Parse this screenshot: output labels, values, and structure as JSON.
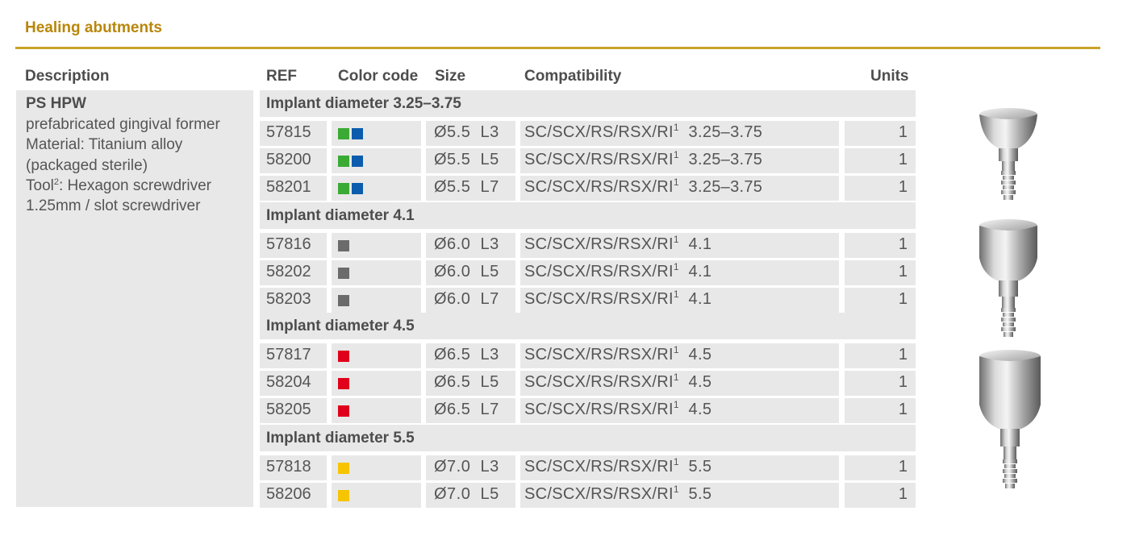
{
  "section_title": "Healing abutments",
  "headers": {
    "description": "Description",
    "ref": "REF",
    "color_code": "Color code",
    "size": "Size",
    "compatibility": "Compatibility",
    "units": "Units"
  },
  "description": {
    "title": "PS HPW",
    "line1": "prefabricated gingival former",
    "line2": "Material: Titanium alloy",
    "line3": "(packaged sterile)",
    "line4_pre": "Tool",
    "line4_sup": "2",
    "line4_post": ": Hexagon screwdriver",
    "line5": "1.25mm / slot screwdriver"
  },
  "groups": [
    {
      "label": "Implant diameter 3.25–3.75",
      "rows": [
        {
          "ref": "57815",
          "colors": [
            "#3aaa35",
            "#0b5cad"
          ],
          "size": "Ø5.5  L3",
          "compat": "SC/SCX/RS/RSX/RI",
          "compat_sup": "1",
          "compat_dia": "3.25–3.75",
          "units": "1"
        },
        {
          "ref": "58200",
          "colors": [
            "#3aaa35",
            "#0b5cad"
          ],
          "size": "Ø5.5  L5",
          "compat": "SC/SCX/RS/RSX/RI",
          "compat_sup": "1",
          "compat_dia": "3.25–3.75",
          "units": "1"
        },
        {
          "ref": "58201",
          "colors": [
            "#3aaa35",
            "#0b5cad"
          ],
          "size": "Ø5.5  L7",
          "compat": "SC/SCX/RS/RSX/RI",
          "compat_sup": "1",
          "compat_dia": "3.25–3.75",
          "units": "1"
        }
      ]
    },
    {
      "label": "Implant diameter 4.1",
      "rows": [
        {
          "ref": "57816",
          "colors": [
            "#6b6b6b"
          ],
          "size": "Ø6.0  L3",
          "compat": "SC/SCX/RS/RSX/RI",
          "compat_sup": "1",
          "compat_dia": "4.1",
          "units": "1"
        },
        {
          "ref": "58202",
          "colors": [
            "#6b6b6b"
          ],
          "size": "Ø6.0  L5",
          "compat": "SC/SCX/RS/RSX/RI",
          "compat_sup": "1",
          "compat_dia": "4.1",
          "units": "1"
        },
        {
          "ref": "58203",
          "colors": [
            "#6b6b6b"
          ],
          "size": "Ø6.0  L7",
          "compat": "SC/SCX/RS/RSX/RI",
          "compat_sup": "1",
          "compat_dia": "4.1",
          "units": "1"
        }
      ]
    },
    {
      "label": "Implant diameter 4.5",
      "rows": [
        {
          "ref": "57817",
          "colors": [
            "#e0001b"
          ],
          "size": "Ø6.5  L3",
          "compat": "SC/SCX/RS/RSX/RI",
          "compat_sup": "1",
          "compat_dia": "4.5",
          "units": "1"
        },
        {
          "ref": "58204",
          "colors": [
            "#e0001b"
          ],
          "size": "Ø6.5  L5",
          "compat": "SC/SCX/RS/RSX/RI",
          "compat_sup": "1",
          "compat_dia": "4.5",
          "units": "1"
        },
        {
          "ref": "58205",
          "colors": [
            "#e0001b"
          ],
          "size": "Ø6.5  L7",
          "compat": "SC/SCX/RS/RSX/RI",
          "compat_sup": "1",
          "compat_dia": "4.5",
          "units": "1"
        }
      ]
    },
    {
      "label": "Implant diameter 5.5",
      "rows": [
        {
          "ref": "57818",
          "colors": [
            "#f6c400"
          ],
          "size": "Ø7.0  L3",
          "compat": "SC/SCX/RS/RSX/RI",
          "compat_sup": "1",
          "compat_dia": "5.5",
          "units": "1"
        },
        {
          "ref": "58206",
          "colors": [
            "#f6c400"
          ],
          "size": "Ø7.0  L5",
          "compat": "SC/SCX/RS/RSX/RI",
          "compat_sup": "1",
          "compat_dia": "5.5",
          "units": "1"
        }
      ]
    }
  ],
  "images": [
    "healing-abutment-small-icon",
    "healing-abutment-medium-icon",
    "healing-abutment-large-icon"
  ]
}
